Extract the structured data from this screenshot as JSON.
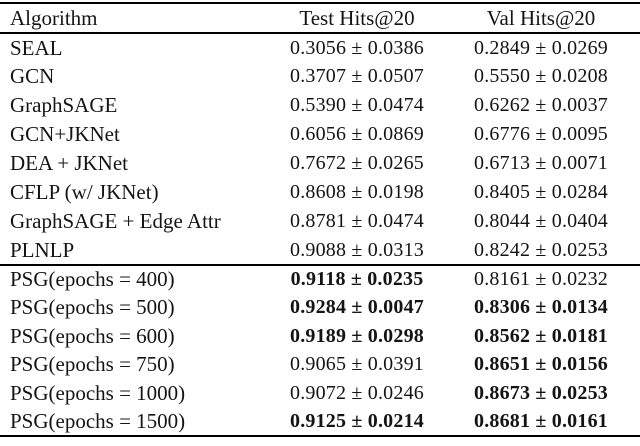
{
  "page": {
    "background": "#ffffff",
    "text_color": "#141414",
    "rule_color": "#000000"
  },
  "table": {
    "headers": {
      "algorithm": "Algorithm",
      "test": "Test Hits@20",
      "val": "Val Hits@20"
    },
    "baseline_rows": [
      {
        "algorithm": "SEAL",
        "test": "0.3056 ± 0.0386",
        "test_bold": false,
        "val": "0.2849 ± 0.0269",
        "val_bold": false
      },
      {
        "algorithm": "GCN",
        "test": "0.3707 ± 0.0507",
        "test_bold": false,
        "val": "0.5550 ± 0.0208",
        "val_bold": false
      },
      {
        "algorithm": "GraphSAGE",
        "test": "0.5390 ± 0.0474",
        "test_bold": false,
        "val": "0.6262 ± 0.0037",
        "val_bold": false
      },
      {
        "algorithm": "GCN+JKNet",
        "test": "0.6056 ± 0.0869",
        "test_bold": false,
        "val": "0.6776 ± 0.0095",
        "val_bold": false
      },
      {
        "algorithm": "DEA + JKNet",
        "test": "0.7672 ± 0.0265",
        "test_bold": false,
        "val": "0.6713 ± 0.0071",
        "val_bold": false
      },
      {
        "algorithm": "CFLP (w/ JKNet)",
        "test": "0.8608 ± 0.0198",
        "test_bold": false,
        "val": "0.8405 ± 0.0284",
        "val_bold": false
      },
      {
        "algorithm": "GraphSAGE + Edge Attr",
        "test": "0.8781 ± 0.0474",
        "test_bold": false,
        "val": "0.8044 ± 0.0404",
        "val_bold": false
      },
      {
        "algorithm": "PLNLP",
        "test": "0.9088 ± 0.0313",
        "test_bold": false,
        "val": "0.8242 ± 0.0253",
        "val_bold": false
      }
    ],
    "psg_rows": [
      {
        "algorithm": "PSG(epochs = 400)",
        "test": "0.9118 ± 0.0235",
        "test_bold": true,
        "val": "0.8161 ± 0.0232",
        "val_bold": false
      },
      {
        "algorithm": "PSG(epochs = 500)",
        "test": "0.9284 ± 0.0047",
        "test_bold": true,
        "val": "0.8306 ± 0.0134",
        "val_bold": true
      },
      {
        "algorithm": "PSG(epochs = 600)",
        "test": "0.9189 ± 0.0298",
        "test_bold": true,
        "val": "0.8562 ± 0.0181",
        "val_bold": true
      },
      {
        "algorithm": "PSG(epochs = 750)",
        "test": "0.9065 ± 0.0391",
        "test_bold": false,
        "val": "0.8651 ± 0.0156",
        "val_bold": true
      },
      {
        "algorithm": "PSG(epochs = 1000)",
        "test": "0.9072 ± 0.0246",
        "test_bold": false,
        "val": "0.8673 ± 0.0253",
        "val_bold": true
      },
      {
        "algorithm": "PSG(epochs = 1500)",
        "test": "0.9125 ± 0.0214",
        "test_bold": true,
        "val": "0.8681 ± 0.0161",
        "val_bold": true
      }
    ]
  }
}
